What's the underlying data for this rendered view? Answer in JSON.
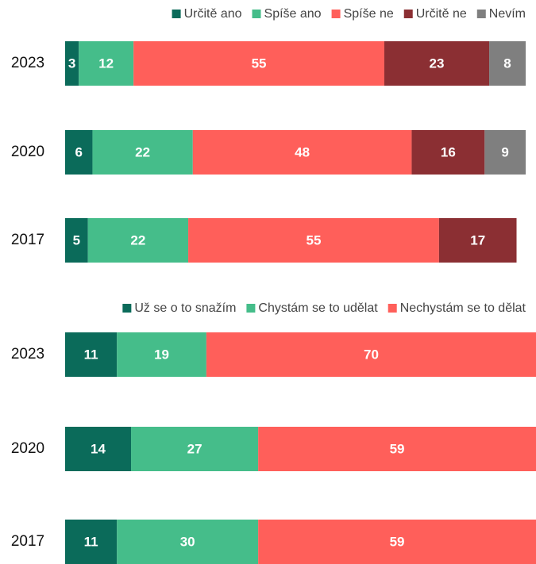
{
  "chart_data": [
    {
      "type": "stacked-bar-horizontal",
      "categories": [
        "2023",
        "2020",
        "2017"
      ],
      "xlim": [
        0,
        101
      ],
      "legend": "top-right",
      "series": [
        {
          "name": "Určitě ano",
          "color": "#0b6b5a",
          "values": [
            3,
            6,
            5
          ]
        },
        {
          "name": "Spíše ano",
          "color": "#45bd8a",
          "values": [
            12,
            22,
            22
          ]
        },
        {
          "name": "Spíše ne",
          "color": "#ff5f5a",
          "values": [
            55,
            48,
            55
          ]
        },
        {
          "name": "Určitě ne",
          "color": "#8b2f33",
          "values": [
            23,
            16,
            17
          ]
        },
        {
          "name": "Nevím",
          "color": "#7f7f7f",
          "values": [
            8,
            9,
            null
          ]
        }
      ]
    },
    {
      "type": "stacked-bar-horizontal",
      "categories": [
        "2023",
        "2020",
        "2017"
      ],
      "xlim": [
        0,
        100
      ],
      "legend": "top-right",
      "series": [
        {
          "name": "Už se o to snažím",
          "color": "#0b6b5a",
          "values": [
            11,
            14,
            11
          ]
        },
        {
          "name": "Chystám se to udělat",
          "color": "#45bd8a",
          "values": [
            19,
            27,
            30
          ]
        },
        {
          "name": "Nechystám se to dělat",
          "color": "#ff5f5a",
          "values": [
            70,
            59,
            59
          ]
        }
      ]
    }
  ]
}
